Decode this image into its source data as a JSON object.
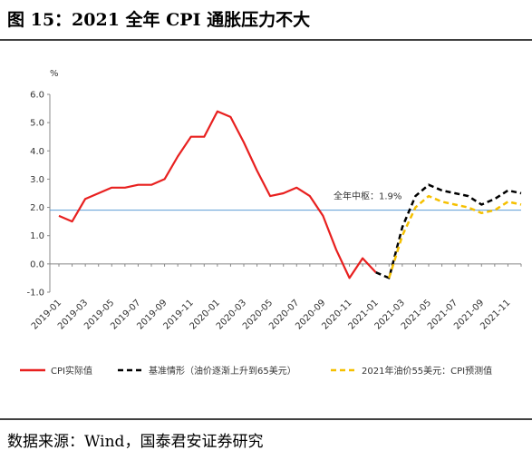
{
  "chart_data": {
    "type": "line",
    "title": "图 15：2021 全年 CPI 通胀压力不大",
    "y_unit": "%",
    "source": "数据来源：Wind，国泰君安证券研究",
    "categories": [
      "2019-01",
      null,
      "2019-03",
      null,
      "2019-05",
      null,
      "2019-07",
      null,
      "2019-09",
      null,
      "2019-11",
      null,
      "2020-01",
      null,
      "2020-03",
      null,
      "2020-05",
      null,
      "2020-07",
      null,
      "2020-09",
      null,
      "2020-11",
      null,
      "2021-01",
      null,
      "2021-03",
      null,
      "2021-05",
      null,
      "2021-07",
      null,
      "2021-09",
      null,
      "2021-11",
      null
    ],
    "series": [
      {
        "name": "CPI实际值",
        "color": "#e8201f",
        "dash": false,
        "values": [
          1.7,
          1.5,
          2.3,
          2.5,
          2.7,
          2.7,
          2.8,
          2.8,
          3.0,
          3.8,
          4.5,
          4.5,
          5.4,
          5.2,
          4.3,
          3.3,
          2.4,
          2.5,
          2.7,
          2.4,
          1.7,
          0.5,
          -0.5,
          0.2,
          -0.3,
          null,
          null,
          null,
          null,
          null,
          null,
          null,
          null,
          null,
          null,
          null
        ]
      },
      {
        "name": "基准情形（油价逐渐上升到65美元）",
        "color": "#000000",
        "dash": true,
        "values": [
          null,
          null,
          null,
          null,
          null,
          null,
          null,
          null,
          null,
          null,
          null,
          null,
          null,
          null,
          null,
          null,
          null,
          null,
          null,
          null,
          null,
          null,
          null,
          null,
          -0.3,
          -0.5,
          1.3,
          2.4,
          2.8,
          2.6,
          2.5,
          2.4,
          2.1,
          2.3,
          2.6,
          2.5
        ]
      },
      {
        "name": "2021年油价55美元：CPI预测值",
        "color": "#f5c000",
        "dash": true,
        "values": [
          null,
          null,
          null,
          null,
          null,
          null,
          null,
          null,
          null,
          null,
          null,
          null,
          null,
          null,
          null,
          null,
          null,
          null,
          null,
          null,
          null,
          null,
          null,
          null,
          null,
          -0.5,
          1.0,
          2.0,
          2.4,
          2.2,
          2.1,
          2.0,
          1.8,
          1.9,
          2.2,
          2.1
        ]
      }
    ],
    "reference_line": {
      "value": 1.9,
      "label": "全年中枢：1.9%",
      "color": "#5b9bd5"
    },
    "ylim": [
      -1.0,
      6.0
    ],
    "yticks": [
      {
        "value": 6,
        "label": "6.0"
      },
      {
        "value": 5,
        "label": "5.0"
      },
      {
        "value": 4,
        "label": "4.0"
      },
      {
        "value": 3,
        "label": "3.0"
      },
      {
        "value": 2,
        "label": "2.0"
      },
      {
        "value": 1,
        "label": "1.0"
      },
      {
        "value": 0,
        "label": "0.0"
      },
      {
        "value": -1,
        "label": "-1.0"
      }
    ],
    "legend": "bottom"
  }
}
